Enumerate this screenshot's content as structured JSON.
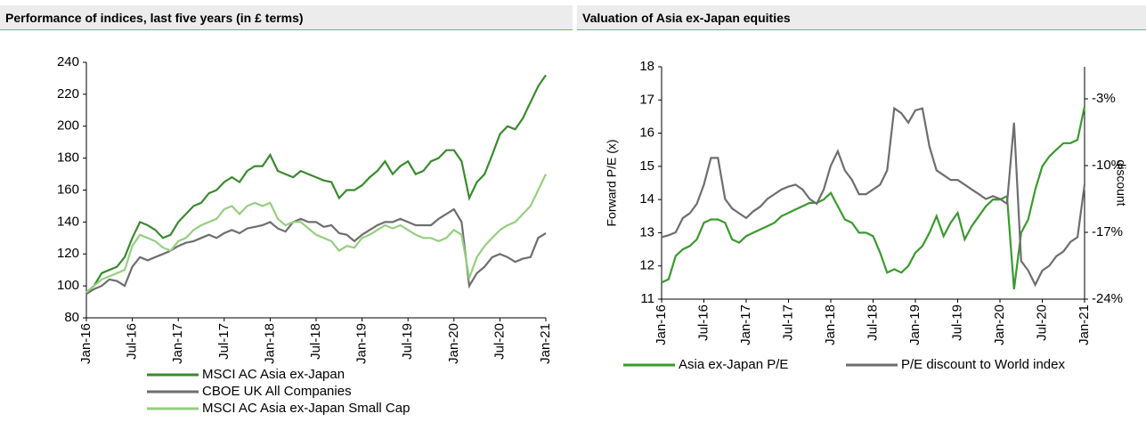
{
  "chart_data": [
    {
      "type": "line",
      "title": "Performance of indices, last five years (in £ terms)",
      "categories": [
        "Jan-16",
        null,
        null,
        null,
        null,
        null,
        "Jul-16",
        null,
        null,
        null,
        null,
        null,
        "Jan-17",
        null,
        null,
        null,
        null,
        null,
        "Jul-17",
        null,
        null,
        null,
        null,
        null,
        "Jan-18",
        null,
        null,
        null,
        null,
        null,
        "Jul-18",
        null,
        null,
        null,
        null,
        null,
        "Jan-19",
        null,
        null,
        null,
        null,
        null,
        "Jul-19",
        null,
        null,
        null,
        null,
        null,
        "Jan-20",
        null,
        null,
        null,
        null,
        null,
        "Jul-20",
        null,
        null,
        null,
        null,
        null,
        "Jan-21"
      ],
      "ylim": [
        80,
        240
      ],
      "yticks": [
        80,
        100,
        120,
        140,
        160,
        180,
        200,
        220,
        240
      ],
      "legend": "bottom-left",
      "series": [
        {
          "name": "MSCI AC Asia ex-Japan",
          "color": "#3a8a2e",
          "values": [
            96,
            100,
            108,
            110,
            112,
            118,
            130,
            140,
            138,
            135,
            130,
            132,
            140,
            145,
            150,
            152,
            158,
            160,
            165,
            168,
            165,
            172,
            175,
            175,
            182,
            172,
            170,
            168,
            172,
            170,
            168,
            166,
            165,
            155,
            160,
            160,
            163,
            168,
            172,
            178,
            170,
            175,
            178,
            170,
            172,
            178,
            180,
            185,
            185,
            178,
            155,
            165,
            170,
            182,
            195,
            200,
            198,
            205,
            215,
            225,
            232
          ]
        },
        {
          "name": "CBOE UK All Companies",
          "color": "#6e6e6e",
          "values": [
            95,
            98,
            100,
            104,
            103,
            100,
            112,
            118,
            116,
            118,
            120,
            122,
            125,
            127,
            128,
            130,
            132,
            130,
            133,
            135,
            133,
            136,
            137,
            138,
            140,
            136,
            134,
            140,
            142,
            140,
            140,
            137,
            138,
            133,
            132,
            128,
            132,
            135,
            138,
            140,
            140,
            142,
            140,
            138,
            138,
            138,
            142,
            145,
            148,
            140,
            100,
            108,
            112,
            118,
            120,
            118,
            115,
            117,
            118,
            130,
            133
          ]
        },
        {
          "name": "MSCI AC Asia ex-Japan Small Cap",
          "color": "#95cf80",
          "values": [
            96,
            100,
            104,
            106,
            108,
            110,
            125,
            132,
            130,
            128,
            124,
            122,
            128,
            130,
            135,
            138,
            140,
            142,
            148,
            150,
            145,
            150,
            152,
            150,
            152,
            142,
            138,
            140,
            140,
            136,
            132,
            130,
            128,
            122,
            125,
            124,
            130,
            132,
            135,
            138,
            136,
            138,
            135,
            132,
            130,
            130,
            128,
            130,
            135,
            132,
            105,
            118,
            125,
            130,
            135,
            138,
            140,
            145,
            150,
            160,
            170
          ]
        }
      ]
    },
    {
      "type": "line",
      "title": "Valuation of Asia ex-Japan equities",
      "ylabel": "Forward P/E (x)",
      "y2label": "discount",
      "categories": [
        "Jan-16",
        null,
        null,
        null,
        null,
        null,
        "Jul-16",
        null,
        null,
        null,
        null,
        null,
        "Jan-17",
        null,
        null,
        null,
        null,
        null,
        "Jul-17",
        null,
        null,
        null,
        null,
        null,
        "Jan-18",
        null,
        null,
        null,
        null,
        null,
        "Jul-18",
        null,
        null,
        null,
        null,
        null,
        "Jan-19",
        null,
        null,
        null,
        null,
        null,
        "Jul-19",
        null,
        null,
        null,
        null,
        null,
        "Jan-20",
        null,
        null,
        null,
        null,
        null,
        "Jul-20",
        null,
        null,
        null,
        null,
        null,
        "Jan-21"
      ],
      "ylim": [
        11,
        18
      ],
      "yticks": [
        11,
        12,
        13,
        14,
        15,
        16,
        17,
        18
      ],
      "y2lim": [
        -24,
        0.36
      ],
      "y2ticks": [
        {
          "value": -24,
          "label": "-24%"
        },
        {
          "value": -17,
          "label": "-17%"
        },
        {
          "value": -10,
          "label": "-10%"
        },
        {
          "value": -3,
          "label": "-3%"
        }
      ],
      "legend": "bottom",
      "series": [
        {
          "name": "Asia ex-Japan P/E",
          "color": "#3a9a2e",
          "values": [
            11.5,
            11.6,
            12.3,
            12.5,
            12.6,
            12.8,
            13.3,
            13.4,
            13.4,
            13.3,
            12.8,
            12.7,
            12.9,
            13.0,
            13.1,
            13.2,
            13.3,
            13.5,
            13.6,
            13.7,
            13.8,
            13.9,
            13.9,
            14.0,
            14.2,
            13.8,
            13.4,
            13.3,
            13.0,
            13.0,
            12.9,
            12.4,
            11.8,
            11.9,
            11.8,
            12.0,
            12.4,
            12.6,
            13.0,
            13.5,
            12.9,
            13.3,
            13.6,
            12.8,
            13.2,
            13.5,
            13.8,
            14.0,
            14.0,
            14.1,
            11.3,
            13.0,
            13.4,
            14.3,
            15.0,
            15.3,
            15.5,
            15.7,
            15.7,
            15.8,
            16.8
          ]
        },
        {
          "name": "P/E discount to World index",
          "color": "#6e6e6e",
          "axis": "y2",
          "values": [
            -17.5,
            -17.3,
            -17.0,
            -15.5,
            -15.0,
            -14.0,
            -12.0,
            -9.2,
            -9.2,
            -13.5,
            -14.5,
            -15.0,
            -15.5,
            -14.8,
            -14.3,
            -13.5,
            -13.0,
            -12.5,
            -12.2,
            -12.0,
            -12.5,
            -13.5,
            -14.0,
            -12.5,
            -10.0,
            -8.5,
            -10.5,
            -11.5,
            -13.0,
            -13.0,
            -12.5,
            -12.0,
            -10.5,
            -4.0,
            -4.5,
            -5.5,
            -4.2,
            -4.0,
            -8.0,
            -10.5,
            -11.0,
            -11.5,
            -11.5,
            -12.0,
            -12.5,
            -13.0,
            -13.5,
            -13.2,
            -13.5,
            -14.0,
            -5.5,
            -20.0,
            -21.0,
            -22.5,
            -21.0,
            -20.5,
            -19.5,
            -19.0,
            -18.0,
            -17.5,
            -12.0
          ]
        }
      ]
    }
  ]
}
